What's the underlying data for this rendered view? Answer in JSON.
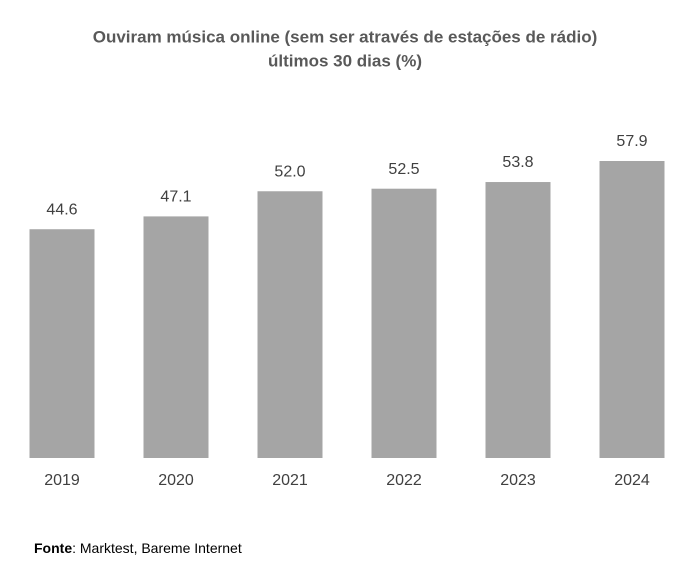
{
  "chart_data": {
    "type": "bar",
    "title": "Ouviram música online (sem ser através de estações de rádio)",
    "subtitle": "últimos 30 dias (%)",
    "categories": [
      "2019",
      "2020",
      "2021",
      "2022",
      "2023",
      "2024"
    ],
    "values": [
      44.6,
      47.1,
      52.0,
      52.5,
      53.8,
      57.9
    ],
    "value_labels": [
      "44.6",
      "47.1",
      "52.0",
      "52.5",
      "53.8",
      "57.9"
    ],
    "color": "#a5a5a5",
    "source_label": "Fonte",
    "source": ": Marktest, Bareme Internet"
  }
}
